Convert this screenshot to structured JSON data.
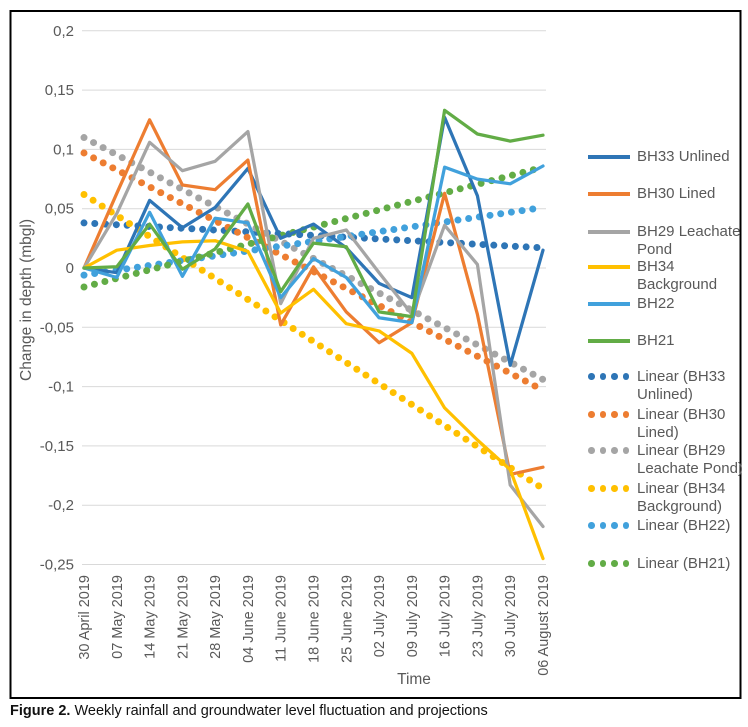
{
  "figure": {
    "caption_label": "Figure 2.",
    "caption_text": " Weekly rainfall and groundwater level fluctuation and projections"
  },
  "chart_data": {
    "type": "line",
    "title": "",
    "xlabel": "Time",
    "ylabel": "Change in depth (mbgl)",
    "ylim": [
      -0.25,
      0.2
    ],
    "ytick_step": 0.05,
    "ytick_labels": [
      "0,2",
      "0,15",
      "0,1",
      "0,05",
      "0",
      "-0,05",
      "-0,1",
      "-0,15",
      "-0,2",
      "-0,25"
    ],
    "grid": "horizontal",
    "legend_position": "right",
    "categories": [
      "30 April 2019",
      "07 May 2019",
      "14 May 2019",
      "21 May 2019",
      "28 May 2019",
      "04 June 2019",
      "11 June 2019",
      "18 June 2019",
      "25 June 2019",
      "02 July 2019",
      "09 July 2019",
      "16 July 2019",
      "23 July 2019",
      "30 July 2019",
      "06 August 2019"
    ],
    "series": [
      {
        "name": "BH33 Unlined",
        "color": "#2E75B6",
        "values": [
          0,
          -0.004,
          0.057,
          0.034,
          0.051,
          0.084,
          0.025,
          0.037,
          0.017,
          -0.013,
          -0.025,
          0.127,
          0.061,
          -0.082,
          0.015
        ]
      },
      {
        "name": "BH30 Lined",
        "color": "#ED7D31",
        "values": [
          0,
          0.063,
          0.125,
          0.07,
          0.066,
          0.091,
          -0.048,
          0.001,
          -0.037,
          -0.063,
          -0.046,
          0.063,
          -0.039,
          -0.174,
          -0.168
        ]
      },
      {
        "name": "BH29 Leachate Pond",
        "color": "#A5A5A5",
        "values": [
          0,
          0.046,
          0.106,
          0.082,
          0.09,
          0.115,
          -0.03,
          0.025,
          0.032,
          -0.004,
          -0.039,
          0.036,
          0.003,
          -0.183,
          -0.218
        ]
      },
      {
        "name": "BH34 Background",
        "color": "#FFC000",
        "values": [
          0,
          0.015,
          0.019,
          0.022,
          0.023,
          0.014,
          -0.038,
          -0.018,
          -0.047,
          -0.053,
          -0.072,
          -0.118,
          -0.145,
          -0.17,
          -0.245
        ]
      },
      {
        "name": "BH22",
        "color": "#41A1DC",
        "values": [
          0,
          -0.008,
          0.047,
          -0.007,
          0.042,
          0.038,
          -0.025,
          0.008,
          -0.008,
          -0.042,
          -0.046,
          0.085,
          0.075,
          0.071,
          0.086
        ]
      },
      {
        "name": "BH21",
        "color": "#62AC46",
        "values": [
          0,
          0.001,
          0.037,
          -0.001,
          0.016,
          0.054,
          -0.02,
          0.021,
          0.018,
          -0.037,
          -0.041,
          0.133,
          0.113,
          0.107,
          0.112
        ]
      }
    ],
    "trendlines": [
      {
        "name": "Linear (BH33 Unlined)",
        "color": "#2E75B6",
        "start": 0.038,
        "end": 0.017
      },
      {
        "name": "Linear (BH30 Lined)",
        "color": "#ED7D31",
        "start": 0.097,
        "end": -0.103
      },
      {
        "name": "Linear (BH29 Leachate Pond)",
        "color": "#A5A5A5",
        "start": 0.11,
        "end": -0.094
      },
      {
        "name": "Linear (BH34 Background)",
        "color": "#FFC000",
        "start": 0.062,
        "end": -0.186
      },
      {
        "name": "Linear (BH22)",
        "color": "#41A1DC",
        "start": -0.006,
        "end": 0.051
      },
      {
        "name": "Linear (BH21)",
        "color": "#62AC46",
        "start": -0.016,
        "end": 0.085
      }
    ]
  },
  "colors": {
    "gridline": "#D9D9D9",
    "axis_text": "#595959",
    "frame_border": "#000000"
  }
}
